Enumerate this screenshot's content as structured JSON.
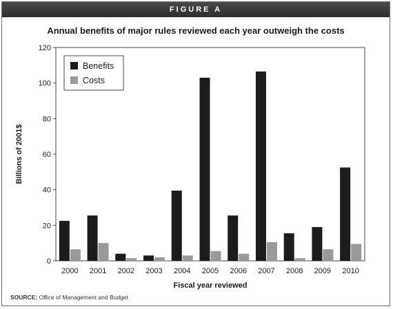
{
  "figure": {
    "header": "FIGURE A",
    "title": "Annual benefits of major rules reviewed each year outweigh the costs",
    "source_label": "SOURCE:",
    "source_text": "Office of Management and Budget"
  },
  "colors": {
    "benefits": "#1c1c1c",
    "costs": "#9a9a9a",
    "axis": "#444444"
  },
  "chart_data": {
    "type": "bar",
    "title": "Annual benefits of major rules reviewed each year outweigh the costs",
    "xlabel": "Fiscal year reviewed",
    "ylabel": "Billions of 2001$",
    "categories": [
      "2000",
      "2001",
      "2002",
      "2003",
      "2004",
      "2005",
      "2006",
      "2007",
      "2008",
      "2009",
      "2010"
    ],
    "ylim": [
      0,
      120
    ],
    "yticks": [
      0,
      20,
      40,
      60,
      80,
      100,
      120
    ],
    "grid": false,
    "legend_position": "top-left",
    "series": [
      {
        "name": "Benefits",
        "values": [
          22.5,
          25.5,
          4,
          3,
          39.5,
          103,
          25.5,
          106.5,
          15.5,
          19,
          52.5
        ]
      },
      {
        "name": "Costs",
        "values": [
          6.5,
          10,
          1.5,
          2,
          3,
          5.5,
          4,
          10.5,
          1.5,
          6.5,
          9.5
        ]
      }
    ]
  }
}
